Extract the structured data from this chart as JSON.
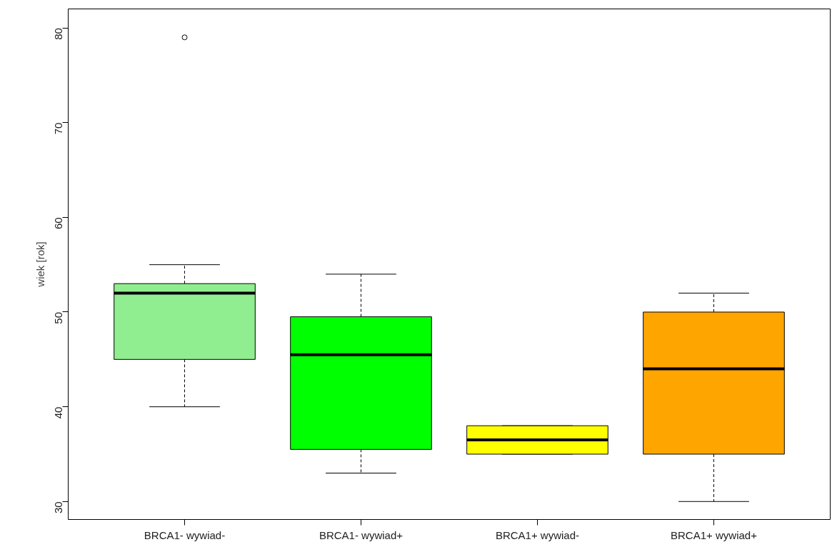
{
  "chart_data": {
    "type": "box",
    "ylabel": "wiek [rok]",
    "categories": [
      "BRCA1- wywiad-",
      "BRCA1- wywiad+",
      "BRCA1+ wywiad-",
      "BRCA1+ wywiad+"
    ],
    "colors": [
      "#90ee90",
      "#00ff00",
      "#ffff00",
      "#ffa500"
    ],
    "boxes": [
      {
        "low": 40,
        "q1": 45,
        "median": 52,
        "q3": 53,
        "high": 55,
        "outliers": [
          79
        ]
      },
      {
        "low": 33,
        "q1": 35.5,
        "median": 45.5,
        "q3": 49.5,
        "high": 54
      },
      {
        "low": 35,
        "q1": 35,
        "median": 36.5,
        "q3": 38,
        "high": 38
      },
      {
        "low": 30,
        "q1": 35,
        "median": 44,
        "q3": 50,
        "high": 52
      }
    ],
    "ylim": [
      28.1,
      82
    ],
    "yticks": [
      30,
      40,
      50,
      60,
      70,
      80
    ],
    "grid": false
  }
}
